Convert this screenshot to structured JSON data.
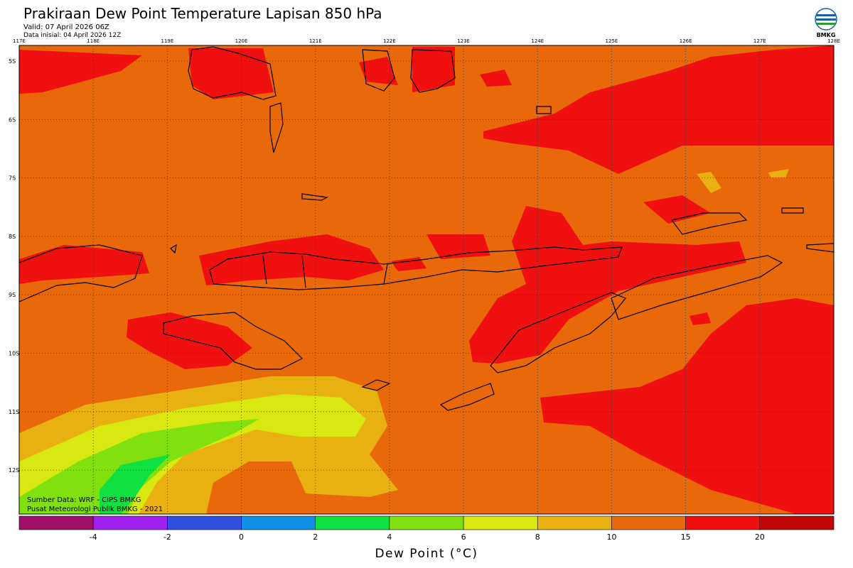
{
  "header": {
    "title": "Prakiraan Dew Point Temperature Lapisan 850 hPa",
    "valid": "Valid: 07 April 2026 06Z",
    "initial": "Data inisial: 04 April 2026 12Z"
  },
  "logo": {
    "label": "BMKG"
  },
  "map": {
    "lon_labels": [
      "117E",
      "118E",
      "119E",
      "120E",
      "121E",
      "122E",
      "123E",
      "124E",
      "125E",
      "126E",
      "127E",
      "128E"
    ],
    "lat_labels": [
      "5S",
      "6S",
      "7S",
      "8S",
      "9S",
      "10S",
      "11S",
      "12S"
    ],
    "credits": [
      "Sumber Data: WRF - CIPS BMKG",
      "Pusat Meteorologi Publik BMKG - 2021"
    ]
  },
  "colorbar": {
    "colors": [
      "#a0106b",
      "#a020f0",
      "#3050e0",
      "#1090e8",
      "#10e040",
      "#80e010",
      "#d8e810",
      "#e8b010",
      "#e8680a",
      "#f01010",
      "#c00808"
    ],
    "ticks": [
      -4,
      -2,
      0,
      2,
      4,
      6,
      8,
      10,
      15,
      20
    ],
    "label": "Dew Point (°C)"
  }
}
